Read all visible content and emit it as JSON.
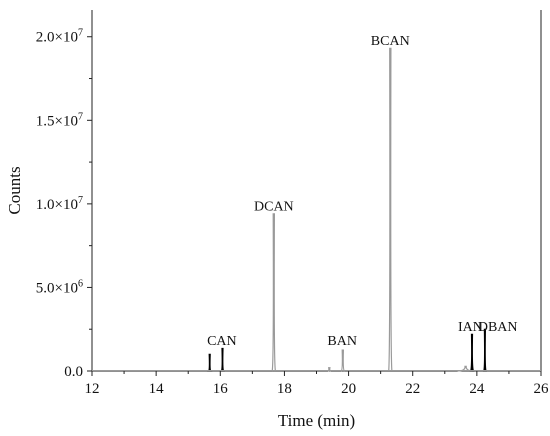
{
  "chart_data": {
    "type": "line",
    "xlabel": "Time (min)",
    "ylabel": "Counts",
    "xlim": [
      12,
      26
    ],
    "ylim": [
      0,
      21600000
    ],
    "x_ticks": [
      12,
      14,
      16,
      18,
      20,
      22,
      24,
      26
    ],
    "x_tick_labels": [
      "12",
      "14",
      "16",
      "18",
      "20",
      "22",
      "24",
      "26"
    ],
    "y_ticks": [
      0,
      5000000,
      10000000,
      15000000,
      20000000
    ],
    "y_tick_labels": [
      {
        "mantissa": "0.0",
        "exp": ""
      },
      {
        "mantissa": "5.0×10",
        "exp": "6"
      },
      {
        "mantissa": "1.0×10",
        "exp": "7"
      },
      {
        "mantissa": "1.5×10",
        "exp": "7"
      },
      {
        "mantissa": "2.0×10",
        "exp": "7"
      }
    ],
    "grid": false,
    "series": [
      {
        "color": "#9a9a9a",
        "style": "outline",
        "peaks": [
          {
            "x": 17.67,
            "y": 9400000,
            "width": 0.05
          },
          {
            "x": 19.4,
            "y": 200000,
            "width": 0.04
          },
          {
            "x": 19.82,
            "y": 1250000,
            "width": 0.05
          },
          {
            "x": 21.3,
            "y": 19300000,
            "width": 0.05
          },
          {
            "x": 23.65,
            "y": 280000,
            "width": 0.25
          }
        ]
      },
      {
        "color": "#000000",
        "style": "filled",
        "peaks": [
          {
            "x": 15.67,
            "y": 1000000,
            "width": 0.04
          },
          {
            "x": 16.07,
            "y": 1350000,
            "width": 0.04
          },
          {
            "x": 23.85,
            "y": 2200000,
            "width": 0.05
          },
          {
            "x": 24.25,
            "y": 2500000,
            "width": 0.04
          }
        ]
      }
    ],
    "annotations": [
      {
        "text": "CAN",
        "x": 16.05,
        "y": 1550000
      },
      {
        "text": "DCAN",
        "x": 17.67,
        "y": 9600000
      },
      {
        "text": "BAN",
        "x": 19.8,
        "y": 1550000
      },
      {
        "text": "BCAN",
        "x": 21.3,
        "y": 19500000
      },
      {
        "text": "IAN",
        "x": 23.8,
        "y": 2400000
      },
      {
        "text": "DBAN",
        "x": 24.65,
        "y": 2400000
      }
    ]
  }
}
